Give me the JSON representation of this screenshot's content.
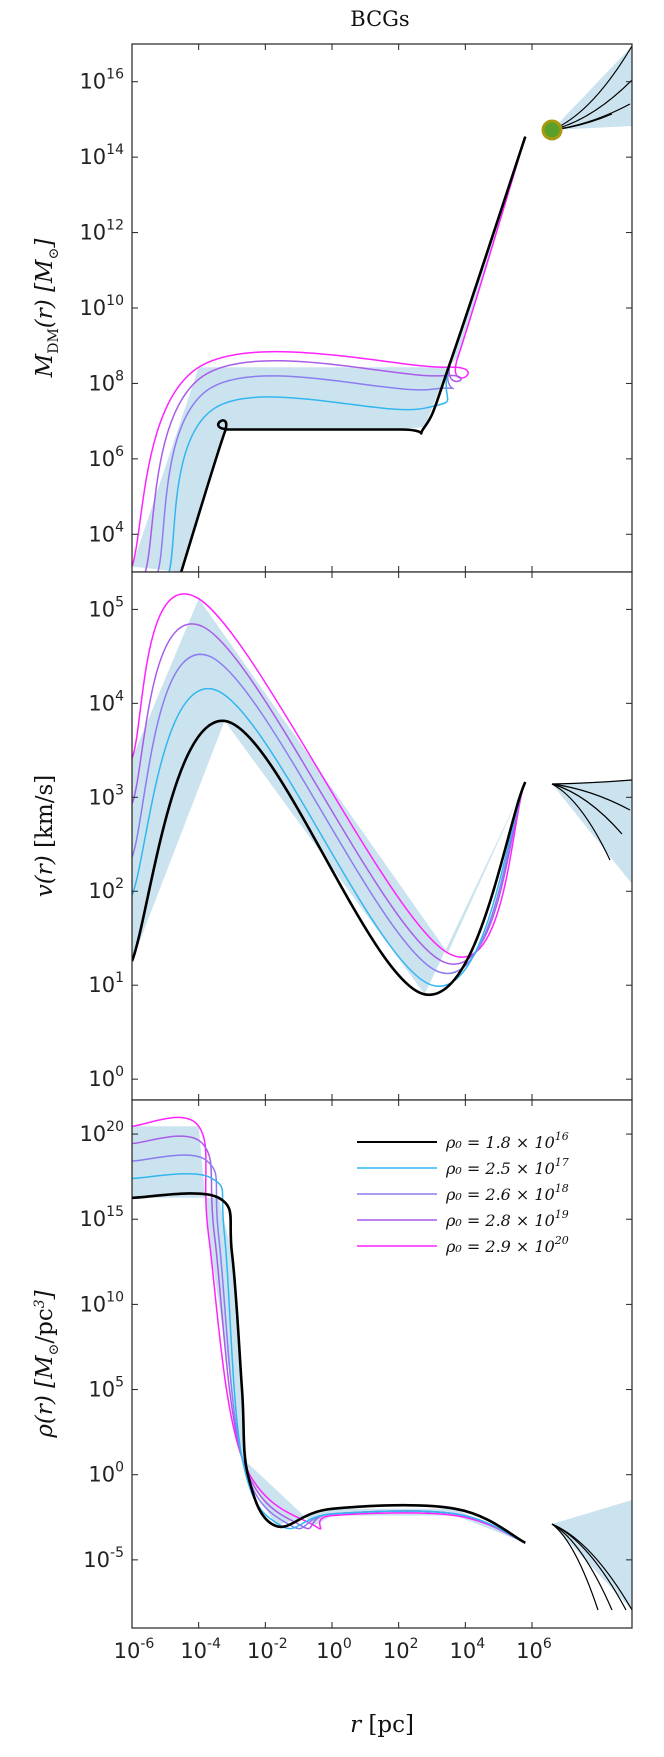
{
  "title": "BCGs",
  "colors": {
    "black": "#000000",
    "cyan": "#33b6f0",
    "lavender": "#8c7cf0",
    "purple": "#a85ce8",
    "magenta": "#ff22ff",
    "band": "#b9daea",
    "marker_fill": "#5aa12c",
    "marker_edge": "#a89a10"
  },
  "legend": [
    {
      "label": "ρ₀ = 1.8 × 10",
      "exp": "16",
      "color": "#000000"
    },
    {
      "label": "ρ₀ = 2.5 × 10",
      "exp": "17",
      "color": "#33b6f0"
    },
    {
      "label": "ρ₀ = 2.6 × 10",
      "exp": "18",
      "color": "#8c7cf0"
    },
    {
      "label": "ρ₀ = 2.8 × 10",
      "exp": "19",
      "color": "#a85ce8"
    },
    {
      "label": "ρ₀ = 2.9 × 10",
      "exp": "20",
      "color": "#ff22ff"
    }
  ],
  "chart_data": [
    {
      "type": "line",
      "panel": "top",
      "ylabel": "M_DM(r)   [M_⊙]",
      "xscale": "log",
      "yscale": "log",
      "xlim": [
        1e-06,
        1000000000.0
      ],
      "ylim": [
        1000.0,
        1e+17
      ],
      "yticks": [
        "10^4",
        "10^6",
        "10^8",
        "10^10",
        "10^12",
        "10^14",
        "10^16"
      ],
      "marker": {
        "x": 631000,
        "y": 350000000000000.0,
        "shape": "circle"
      },
      "series": [
        {
          "name": "ρ₀ = 1.8 × 10^16",
          "color": "#000000",
          "x": [
            3e-05,
            0.0006,
            0.001,
            100,
            600,
            4000,
            631000
          ],
          "y": [
            1000.0,
            5000000.0,
            6000000.0,
            6000000.0,
            7000000.0,
            500000000.0,
            350000000000000.0
          ]
        },
        {
          "name": "ρ₀ = 2.5 × 10^17",
          "color": "#33b6f0",
          "x": [
            1.3e-05,
            0.0003,
            600,
            4000,
            631000
          ],
          "y": [
            1000.0,
            22000000.0,
            22000000.0,
            500000000.0,
            350000000000000.0
          ]
        },
        {
          "name": "ρ₀ = 2.6 × 10^18",
          "color": "#8c7cf0",
          "x": [
            6e-06,
            0.0002,
            1000,
            4000,
            631000
          ],
          "y": [
            1000.0,
            70000000.0,
            70000000.0,
            500000000.0,
            350000000000000.0
          ]
        },
        {
          "name": "ρ₀ = 2.8 × 10^19",
          "color": "#a85ce8",
          "x": [
            2.5e-06,
            0.00014,
            2000,
            4000,
            631000
          ],
          "y": [
            1000.0,
            160000000.0,
            160000000.0,
            500000000.0,
            350000000000000.0
          ]
        },
        {
          "name": "ρ₀ = 2.9 × 10^20",
          "color": "#ff22ff",
          "x": [
            1e-06,
            0.0001,
            3000,
            6000,
            631000
          ],
          "y": [
            1400.0,
            270000000.0,
            270000000.0,
            500000000.0,
            350000000000000.0
          ]
        }
      ]
    },
    {
      "type": "line",
      "panel": "middle",
      "ylabel": "v(r)   [km/s]",
      "xscale": "log",
      "yscale": "log",
      "xlim": [
        1e-06,
        1000000000.0
      ],
      "ylim": [
        0.6,
        250000.0
      ],
      "yticks": [
        "10^0",
        "10^1",
        "10^2",
        "10^3",
        "10^4",
        "10^5"
      ],
      "series": [
        {
          "name": "ρ₀ = 1.8 × 10^16",
          "color": "#000000",
          "x": [
            1e-06,
            0.0006,
            600,
            631000
          ],
          "y": [
            18,
            6500,
            8,
            1450
          ]
        },
        {
          "name": "ρ₀ = 2.5 × 10^17",
          "color": "#33b6f0",
          "x": [
            1e-06,
            0.0003,
            1000,
            631000
          ],
          "y": [
            90,
            14000,
            10,
            1450
          ]
        },
        {
          "name": "ρ₀ = 2.6 × 10^18",
          "color": "#8c7cf0",
          "x": [
            1e-06,
            0.0002,
            1500,
            631000
          ],
          "y": [
            230,
            32000,
            14,
            1450
          ]
        },
        {
          "name": "ρ₀ = 2.8 × 10^19",
          "color": "#a85ce8",
          "x": [
            1e-06,
            0.00014,
            2000,
            631000
          ],
          "y": [
            850,
            65000,
            18,
            1450
          ]
        },
        {
          "name": "ρ₀ = 2.9 × 10^20",
          "color": "#ff22ff",
          "x": [
            1e-06,
            0.0001,
            3000,
            631000
          ],
          "y": [
            2600,
            130000,
            22,
            1450
          ]
        }
      ]
    },
    {
      "type": "line",
      "panel": "bottom",
      "ylabel": "ρ(r)   [M_⊙/pc³]",
      "xlabel": "r   [pc]",
      "xscale": "log",
      "yscale": "log",
      "xlim": [
        1e-06,
        1000000000.0
      ],
      "ylim": [
        1e-09,
        1e+22
      ],
      "xticks": [
        "10^-6",
        "10^-4",
        "10^-2",
        "10^0",
        "10^2",
        "10^4",
        "10^6"
      ],
      "yticks": [
        "10^-5",
        "10^0",
        "10^5",
        "10^10",
        "10^15",
        "10^20"
      ],
      "series": [
        {
          "name": "ρ₀ = 1.8 × 10^16",
          "color": "#000000",
          "x": [
            1e-06,
            0.0004,
            0.001,
            0.002,
            0.003,
            0.02,
            1,
            5000,
            631000
          ],
          "y": [
            1.8e+16,
            1.8e+16,
            10000000000000.0,
            100000.0,
            1.0,
            0.001,
            0.01,
            0.01,
            0.0001
          ]
        },
        {
          "name": "ρ₀ = 2.5 × 10^17",
          "color": "#33b6f0",
          "x": [
            1e-06,
            0.00025,
            0.0006,
            0.002,
            0.03,
            1,
            5000,
            631000
          ],
          "y": [
            2.5e+17,
            2.5e+17,
            100000000000000.0,
            10.0,
            0.001,
            0.005,
            0.005,
            0.0001
          ]
        },
        {
          "name": "ρ₀ = 2.6 × 10^18",
          "color": "#8c7cf0",
          "x": [
            1e-06,
            0.00018,
            0.0004,
            0.002,
            0.06,
            1,
            5000,
            631000
          ],
          "y": [
            2.6e+18,
            2.6e+18,
            100000000000000.0,
            10.0,
            0.001,
            0.005,
            0.005,
            0.0001
          ]
        },
        {
          "name": "ρ₀ = 2.8 × 10^19",
          "color": "#a85ce8",
          "x": [
            1e-06,
            0.00013,
            0.0003,
            0.002,
            0.12,
            1,
            5000,
            631000
          ],
          "y": [
            2.8e+19,
            2.8e+19,
            100000000000000.0,
            10.0,
            0.001,
            0.005,
            0.005,
            0.0001
          ]
        },
        {
          "name": "ρ₀ = 2.9 × 10^20",
          "color": "#ff22ff",
          "x": [
            1e-06,
            0.0001,
            0.0002,
            0.002,
            0.3,
            1,
            5000,
            631000
          ],
          "y": [
            2.9e+20,
            2.9e+20,
            100000000000000.0,
            10.0,
            0.001,
            0.004,
            0.004,
            0.0001
          ]
        }
      ]
    }
  ]
}
